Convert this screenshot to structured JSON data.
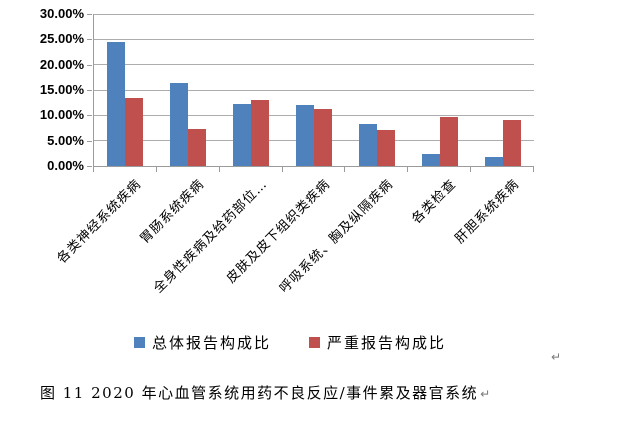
{
  "chart_data": {
    "type": "bar",
    "categories": [
      "各类神经系统疾病",
      "胃肠系统疾病",
      "全身性疾病及给药部位…",
      "皮肤及皮下组织类疾病",
      "呼吸系统、胸及纵隔疾病",
      "各类检查",
      "肝胆系统疾病"
    ],
    "series": [
      {
        "name": "总体报告构成比",
        "color": "#4F81BD",
        "values": [
          24.5,
          16.4,
          12.3,
          12.1,
          8.3,
          2.4,
          1.7
        ]
      },
      {
        "name": "严重报告构成比",
        "color": "#C0504D",
        "values": [
          13.5,
          7.3,
          13.1,
          11.2,
          7.1,
          9.6,
          9.0
        ]
      }
    ],
    "title": "",
    "xlabel": "",
    "ylabel": "",
    "ylim": [
      0,
      30
    ],
    "ytick_step": 5,
    "ytick_labels": [
      "0.00%",
      "5.00%",
      "10.00%",
      "15.00%",
      "20.00%",
      "25.00%",
      "30.00%"
    ],
    "grid": "horizontal",
    "legend_position": "bottom"
  },
  "marks": {
    "after_legend": "↵",
    "after_caption": "↵"
  },
  "caption": {
    "text": "图 11  2020 年心血管系统用药不良反应/事件累及器官系统"
  },
  "colors": {
    "gridline": "#ADADAD",
    "axis": "#9B9B9B",
    "series_total": "#4F81BD",
    "series_serious": "#C0504D",
    "text": "#000000",
    "background": "#FFFFFF"
  }
}
